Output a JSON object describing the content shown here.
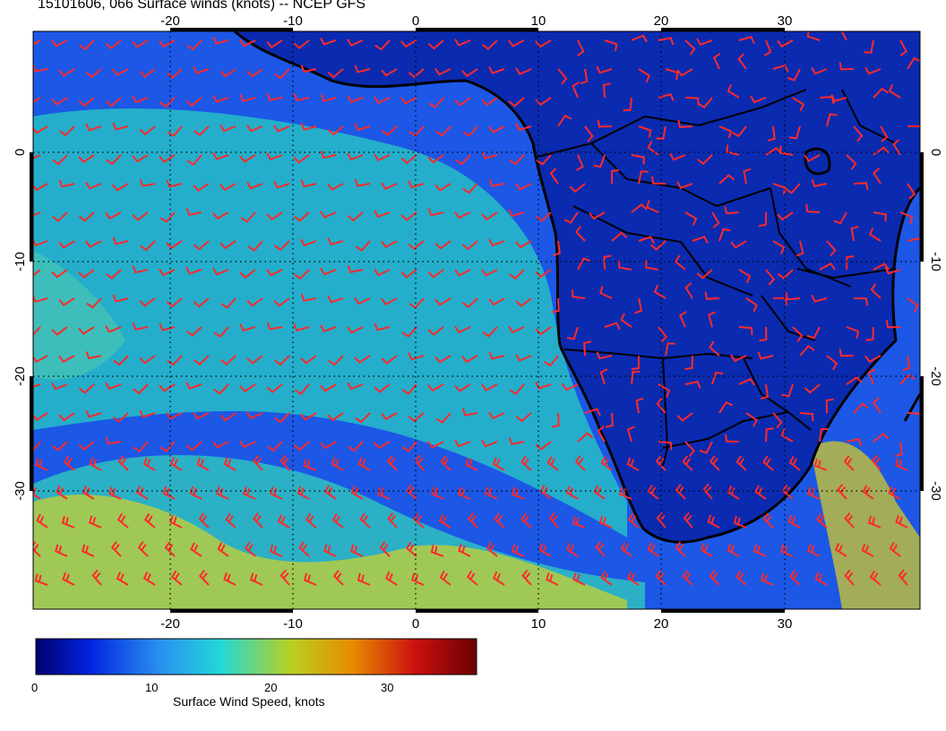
{
  "title": "15101606, 066 Surface winds (knots) -- NCEP GFS",
  "lon_ticks": [
    "-20",
    "-10",
    "0",
    "10",
    "20",
    "30"
  ],
  "lat_ticks": [
    "0",
    "-10",
    "-20",
    "-30"
  ],
  "colorbar": {
    "label": "Surface Wind Speed, knots",
    "ticks": [
      "0",
      "10",
      "20",
      "30"
    ],
    "range": [
      0,
      38
    ],
    "colors": [
      "#00006e",
      "#0022dd",
      "#2a8ff0",
      "#22d8d8",
      "#b8d020",
      "#e88a00",
      "#cc1010",
      "#6a0000"
    ]
  },
  "colors": {
    "barbs": "#ff2a2a",
    "coast": "#000000",
    "land": "#0a2ab0",
    "ocean_calm": "#1c57e6",
    "ocean_breezy": "#26b8c8",
    "ocean_windy": "#c8d030"
  }
}
